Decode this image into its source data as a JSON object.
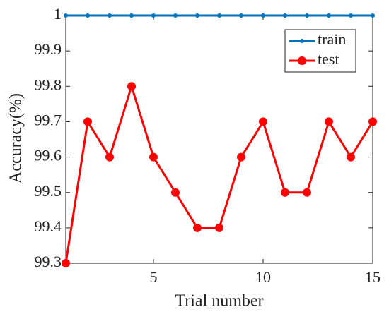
{
  "chart_data": {
    "type": "line",
    "xlabel": "Trial number",
    "ylabel": "Accuracy(%)",
    "x": [
      1,
      2,
      3,
      4,
      5,
      6,
      7,
      8,
      9,
      10,
      11,
      12,
      13,
      14,
      15
    ],
    "series": [
      {
        "name": "train",
        "color": "#0072bd",
        "values": [
          100,
          100,
          100,
          100,
          100,
          100,
          100,
          100,
          100,
          100,
          100,
          100,
          100,
          100,
          100
        ]
      },
      {
        "name": "test",
        "color": "#ff0000",
        "values": [
          99.3,
          99.7,
          99.6,
          99.8,
          99.6,
          99.5,
          99.4,
          99.4,
          99.6,
          99.7,
          99.5,
          99.5,
          99.7,
          99.6,
          99.7
        ]
      }
    ],
    "xlim": [
      1,
      15
    ],
    "xticks": [
      5,
      10,
      15
    ],
    "ylim": [
      99.3,
      100
    ],
    "yticks": [
      99.3,
      99.4,
      99.5,
      99.6,
      99.7,
      99.8,
      99.9,
      {
        "value": 100,
        "label": "1"
      }
    ],
    "legend": "upper right"
  }
}
